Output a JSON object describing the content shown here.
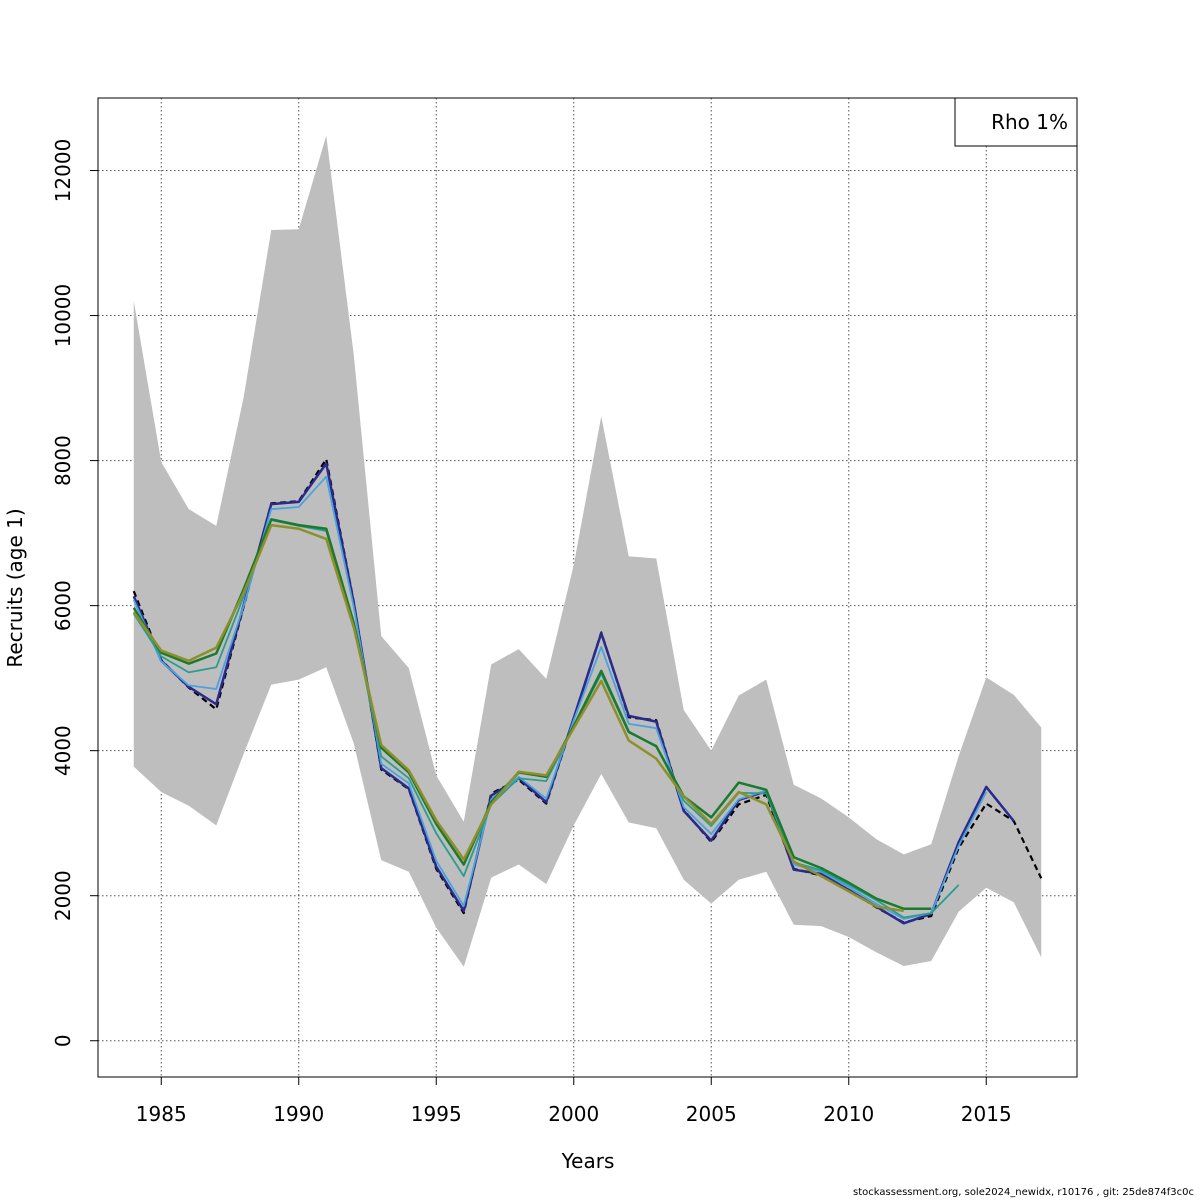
{
  "chart_data": {
    "type": "line",
    "title": "",
    "xlabel": "Years",
    "ylabel": "Recruits (age 1)",
    "xlim": [
      1982.7,
      2018.3
    ],
    "ylim": [
      -500,
      13000
    ],
    "x_ticks": [
      1985,
      1990,
      1995,
      2000,
      2005,
      2010,
      2015
    ],
    "y_ticks": [
      0,
      2000,
      4000,
      6000,
      8000,
      10000,
      12000
    ],
    "grid": true,
    "legend": {
      "placement": "top-right",
      "entries": [
        "Rho 1%"
      ]
    },
    "band": {
      "x": [
        1984,
        1985,
        1986,
        1987,
        1988,
        1989,
        1990,
        1991,
        1992,
        1993,
        1994,
        1995,
        1996,
        1997,
        1998,
        1999,
        2000,
        2001,
        2002,
        2003,
        2004,
        2005,
        2006,
        2007,
        2008,
        2009,
        2010,
        2011,
        2012,
        2013,
        2014,
        2015,
        2016,
        2017
      ],
      "upper": [
        10200,
        7980,
        7330,
        7100,
        8880,
        11180,
        11190,
        12480,
        9460,
        5580,
        5140,
        3660,
        3020,
        5190,
        5400,
        4990,
        6560,
        8610,
        6680,
        6650,
        4560,
        4000,
        4760,
        4980,
        3530,
        3340,
        3080,
        2780,
        2570,
        2710,
        3930,
        5010,
        4770,
        4320
      ],
      "lower": [
        3780,
        3430,
        3240,
        2970,
        3960,
        4910,
        4980,
        5150,
        4100,
        2490,
        2330,
        1560,
        1020,
        2250,
        2430,
        2160,
        2970,
        3680,
        3010,
        2930,
        2220,
        1890,
        2220,
        2330,
        1600,
        1580,
        1430,
        1220,
        1030,
        1100,
        1780,
        2110,
        1910,
        1150
      ],
      "color": "#bebebe"
    },
    "series": [
      {
        "color": "#000000",
        "dashed": true,
        "width": 2.2,
        "x": [
          1984,
          1985,
          1986,
          1987,
          1988,
          1989,
          1990,
          1991,
          1992,
          1993,
          1994,
          1995,
          1996,
          1997,
          1998,
          1999,
          2000,
          2001,
          2002,
          2003,
          2004,
          2005,
          2006,
          2007,
          2008,
          2009,
          2010,
          2011,
          2012,
          2013,
          2014,
          2015,
          2016,
          2017
        ],
        "values": [
          6200,
          5250,
          4870,
          4570,
          5990,
          7410,
          7440,
          8020,
          6050,
          3740,
          3470,
          2370,
          1760,
          3410,
          3600,
          3270,
          4440,
          5630,
          4460,
          4420,
          3180,
          2740,
          3260,
          3390,
          2370,
          2280,
          2080,
          1840,
          1630,
          1720,
          2660,
          3270,
          3030,
          2240
        ]
      },
      {
        "color": "#2a2a8c",
        "dashed": false,
        "width": 2.5,
        "x": [
          1984,
          1985,
          1986,
          1987,
          1988,
          1989,
          1990,
          1991,
          1992,
          1993,
          1994,
          1995,
          1996,
          1997,
          1998,
          1999,
          2000,
          2001,
          2002,
          2003,
          2004,
          2005,
          2006,
          2007,
          2008,
          2009,
          2010,
          2011,
          2012,
          2013,
          2014,
          2015,
          2016
        ],
        "values": [
          6130,
          5240,
          4880,
          4640,
          6010,
          7400,
          7430,
          7960,
          6040,
          3760,
          3480,
          2400,
          1790,
          3380,
          3620,
          3290,
          4450,
          5620,
          4480,
          4400,
          3170,
          2760,
          3320,
          3440,
          2360,
          2300,
          2080,
          1850,
          1620,
          1750,
          2740,
          3500,
          3030
        ]
      },
      {
        "color": "#4aa3df",
        "dashed": false,
        "width": 1.8,
        "x": [
          1984,
          1985,
          1986,
          1987,
          1988,
          1989,
          1990,
          1991,
          1992,
          1993,
          1994,
          1995,
          1996,
          1997,
          1998,
          1999,
          2000,
          2001,
          2002,
          2003,
          2004,
          2005,
          2006,
          2007,
          2008,
          2009,
          2010,
          2011,
          2012,
          2013,
          2014,
          2015
        ],
        "values": [
          6080,
          5230,
          4900,
          4850,
          6000,
          7330,
          7360,
          7780,
          5980,
          3820,
          3550,
          2480,
          1860,
          3330,
          3640,
          3340,
          4420,
          5430,
          4370,
          4310,
          3220,
          2850,
          3330,
          3450,
          2430,
          2330,
          2120,
          1890,
          1680,
          1760,
          2690,
          3430
        ]
      },
      {
        "color": "#2a9d8f",
        "dashed": false,
        "width": 1.8,
        "x": [
          1984,
          1985,
          1986,
          1987,
          1988,
          1989,
          1990,
          1991,
          1992,
          1993,
          1994,
          1995,
          1996,
          1997,
          1998,
          1999,
          2000,
          2001,
          2002,
          2003,
          2004,
          2005,
          2006,
          2007,
          2008,
          2009,
          2010,
          2011,
          2012,
          2013,
          2014
        ],
        "values": [
          5890,
          5300,
          5080,
          5150,
          6130,
          7180,
          7100,
          7030,
          5760,
          3920,
          3620,
          2860,
          2270,
          3260,
          3620,
          3580,
          4330,
          5060,
          4250,
          4070,
          3310,
          2960,
          3420,
          3410,
          2460,
          2350,
          2150,
          1940,
          1700,
          1760,
          2150
        ]
      },
      {
        "color": "#1a7a2e",
        "dashed": false,
        "width": 2.5,
        "x": [
          1984,
          1985,
          1986,
          1987,
          1988,
          1989,
          1990,
          1991,
          1992,
          1993,
          1994,
          1995,
          1996,
          1997,
          1998,
          1999,
          2000,
          2001,
          2002,
          2003,
          2004,
          2005,
          2006,
          2007,
          2008,
          2009,
          2010,
          2011,
          2012,
          2013
        ],
        "values": [
          5970,
          5350,
          5200,
          5340,
          6230,
          7190,
          7110,
          7060,
          5760,
          4040,
          3700,
          2990,
          2430,
          3290,
          3700,
          3640,
          4340,
          5100,
          4260,
          4060,
          3370,
          3080,
          3560,
          3460,
          2530,
          2380,
          2180,
          1960,
          1820,
          1820
        ]
      },
      {
        "color": "#8f8f2a",
        "dashed": false,
        "width": 2.5,
        "x": [
          1984,
          1985,
          1986,
          1987,
          1988,
          1989,
          1990,
          1991,
          1992,
          1993,
          1994,
          1995,
          1996,
          1997,
          1998,
          1999,
          2000,
          2001,
          2002,
          2003,
          2004,
          2005,
          2006,
          2007,
          2008,
          2009,
          2010,
          2011,
          2012
        ],
        "values": [
          5910,
          5380,
          5240,
          5420,
          6180,
          7110,
          7060,
          6920,
          5700,
          4080,
          3730,
          3040,
          2500,
          3260,
          3710,
          3660,
          4310,
          4960,
          4140,
          3890,
          3370,
          2990,
          3430,
          3260,
          2470,
          2270,
          2060,
          1850,
          1790
        ]
      }
    ]
  },
  "footer": "stockassessment.org, sole2024_newidx, r10176 , git: 25de874f3c0c"
}
